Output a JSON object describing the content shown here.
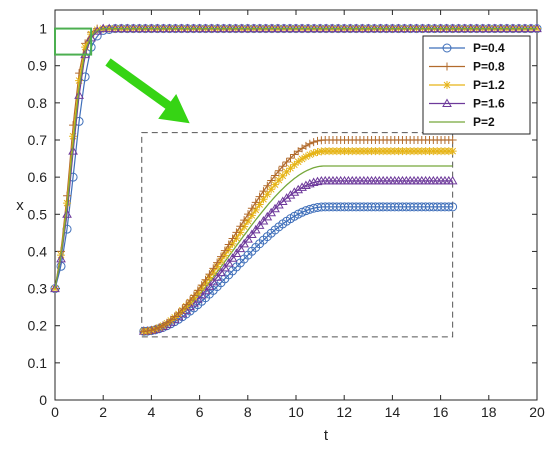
{
  "chart_data": {
    "type": "line",
    "xlabel": "t",
    "ylabel": "x",
    "xlim": [
      0,
      20
    ],
    "ylim": [
      0,
      1.05
    ],
    "xticks": [
      "0",
      "2",
      "4",
      "6",
      "8",
      "10",
      "12",
      "14",
      "16",
      "18",
      "20"
    ],
    "yticks": [
      "0",
      "0.1",
      "0.2",
      "0.3",
      "0.4",
      "0.5",
      "0.6",
      "0.7",
      "0.8",
      "0.9",
      "1"
    ],
    "grid": false,
    "legend_position": "top-right",
    "initial_value": 0.3,
    "series": [
      {
        "name": "P=0.4",
        "color": "#3f6fba",
        "marker": "circle",
        "x": [
          0,
          0.25,
          0.5,
          0.75,
          1.0,
          1.25,
          1.5,
          1.75,
          2.0,
          2.5,
          3.0,
          20
        ],
        "y": [
          0.3,
          0.36,
          0.46,
          0.6,
          0.75,
          0.87,
          0.95,
          0.98,
          0.995,
          1.0,
          1.0,
          1.0
        ]
      },
      {
        "name": "P=0.8",
        "color": "#b26b2c",
        "marker": "plus",
        "x": [
          0,
          0.25,
          0.5,
          0.75,
          1.0,
          1.25,
          1.5,
          1.75,
          2.0,
          2.5,
          3.0,
          20
        ],
        "y": [
          0.3,
          0.4,
          0.55,
          0.74,
          0.88,
          0.96,
          0.99,
          1.0,
          1.0,
          1.0,
          1.0,
          1.0
        ]
      },
      {
        "name": "P=1.2",
        "color": "#e6b417",
        "marker": "asterisk",
        "x": [
          0,
          0.25,
          0.5,
          0.75,
          1.0,
          1.25,
          1.5,
          1.75,
          2.0,
          2.5,
          3.0,
          20
        ],
        "y": [
          0.3,
          0.39,
          0.53,
          0.71,
          0.86,
          0.95,
          0.985,
          0.997,
          1.0,
          1.0,
          1.0,
          1.0
        ]
      },
      {
        "name": "P=1.6",
        "color": "#6e3a9b",
        "marker": "triangle",
        "x": [
          0,
          0.25,
          0.5,
          0.75,
          1.0,
          1.25,
          1.5,
          1.75,
          2.0,
          2.5,
          3.0,
          20
        ],
        "y": [
          0.3,
          0.38,
          0.5,
          0.67,
          0.82,
          0.93,
          0.975,
          0.993,
          1.0,
          1.0,
          1.0,
          1.0
        ]
      },
      {
        "name": "P=2",
        "color": "#76a83b",
        "marker": "none",
        "x": [
          0,
          0.25,
          0.5,
          0.75,
          1.0,
          1.25,
          1.5,
          1.75,
          2.0,
          2.5,
          3.0,
          20
        ],
        "y": [
          0.3,
          0.385,
          0.52,
          0.69,
          0.84,
          0.94,
          0.98,
          0.995,
          1.0,
          1.0,
          1.0,
          1.0
        ]
      }
    ],
    "zoom_inset": {
      "source_x": [
        0,
        1.5
      ],
      "source_y": [
        0.93,
        1.0
      ],
      "display_x": [
        3.6,
        16.5
      ],
      "display_y": [
        0.17,
        0.72
      ],
      "source_box_color": "#4caf50",
      "arrow_color": "#36d414"
    },
    "inset_series": [
      {
        "name": "P=0.4",
        "plateau": 0.52
      },
      {
        "name": "P=0.8",
        "plateau": 0.7
      },
      {
        "name": "P=1.2",
        "plateau": 0.67
      },
      {
        "name": "P=1.6",
        "plateau": 0.59
      },
      {
        "name": "P=2",
        "plateau": 0.63
      }
    ]
  }
}
